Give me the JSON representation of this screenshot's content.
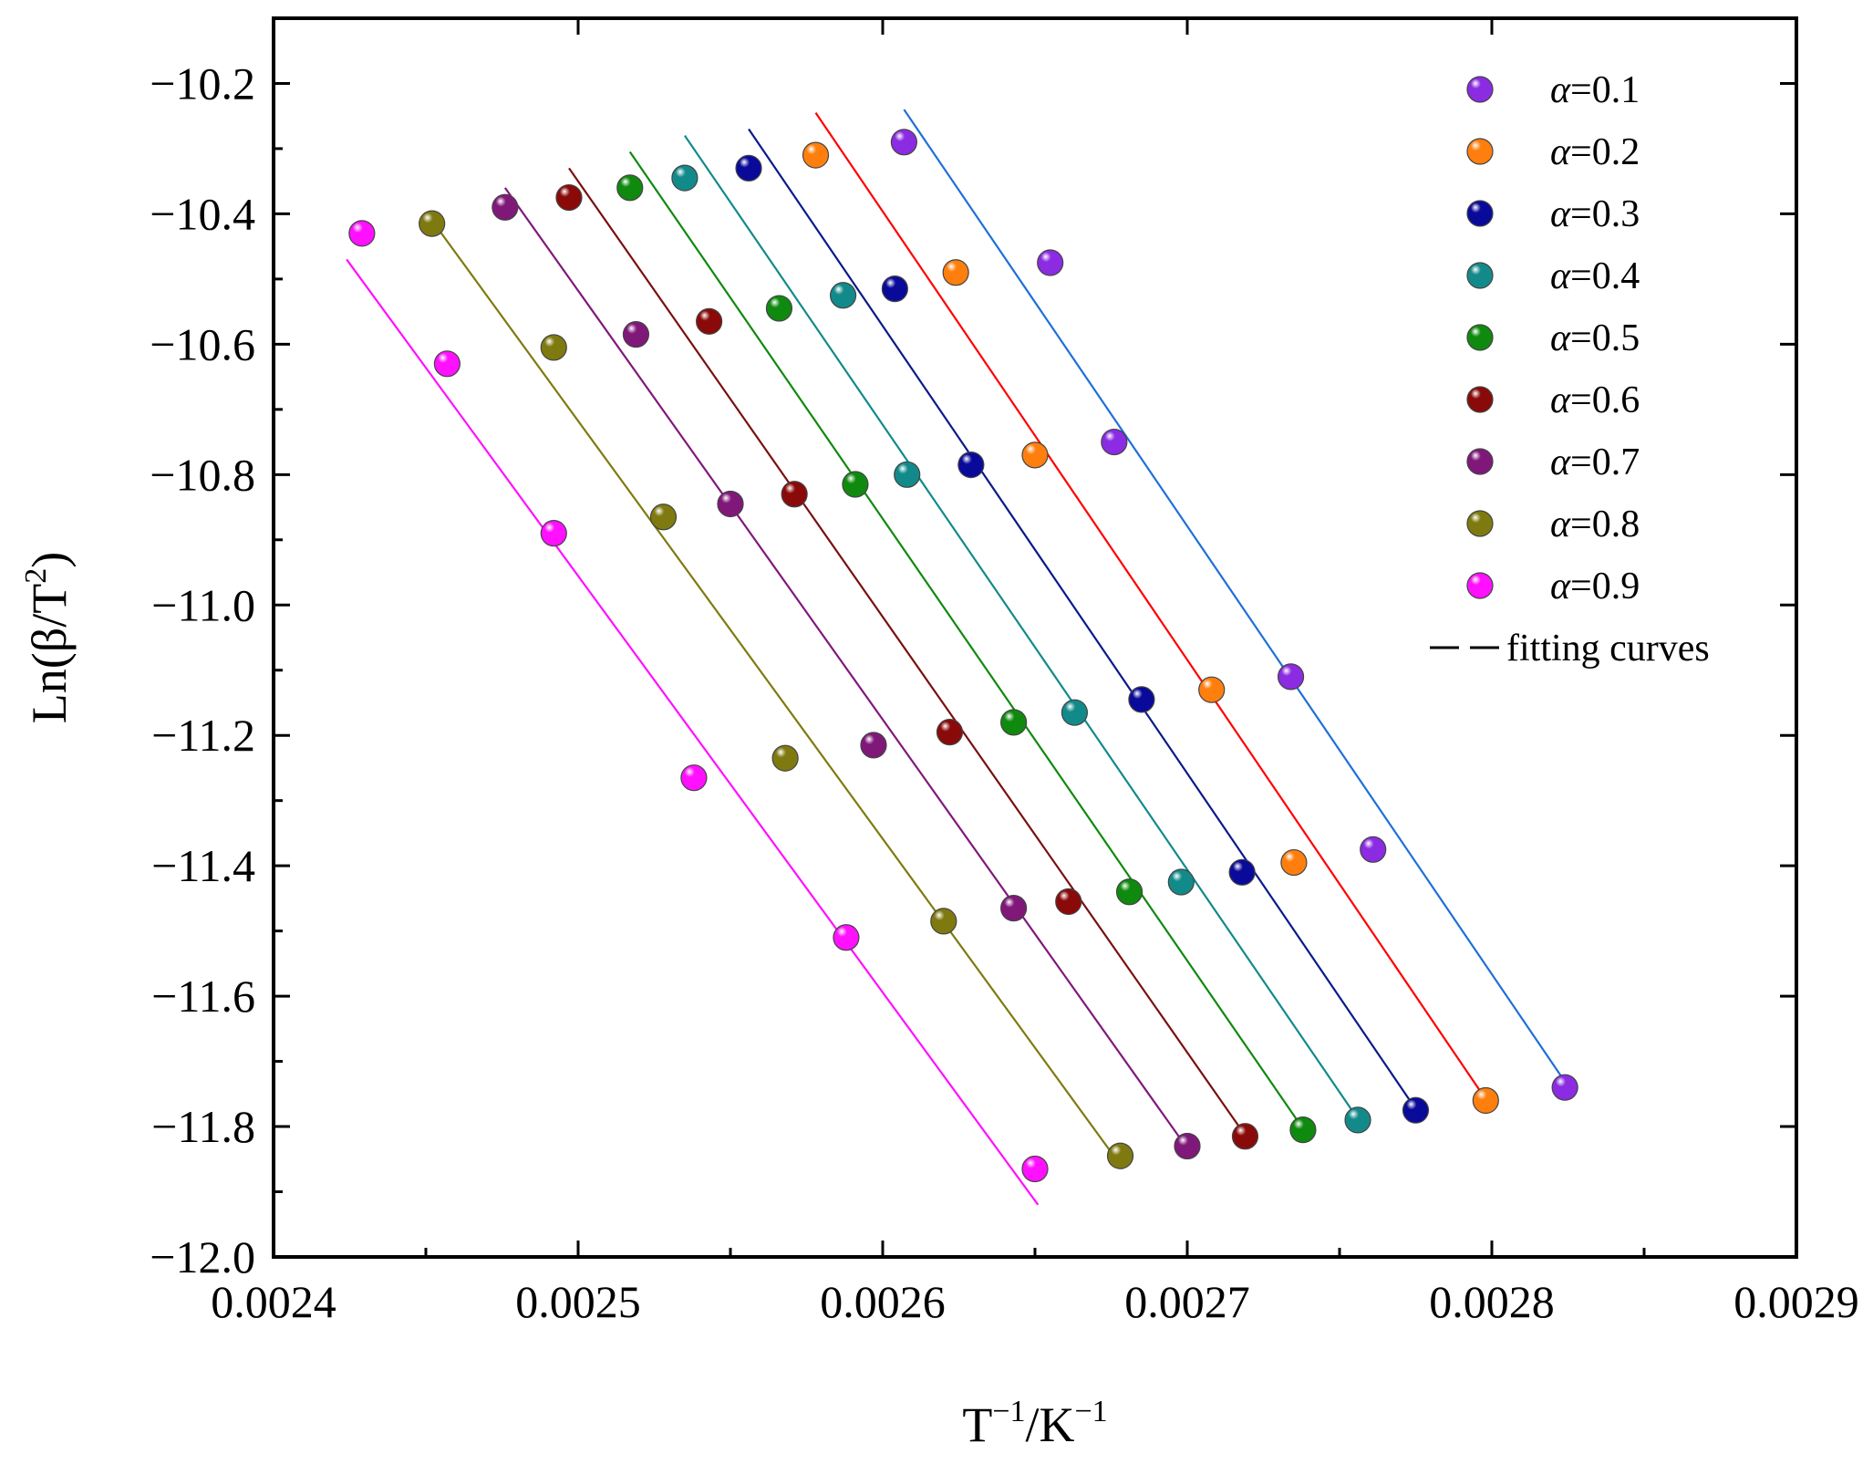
{
  "chart_data": {
    "type": "scatter",
    "title": "",
    "xlabel": {
      "base1": "T",
      "sup1": "−1",
      "mid": "/K",
      "sup2": "−1"
    },
    "ylabel": {
      "pre": "Ln(β/T",
      "sup": "2",
      "post": ")"
    },
    "xlim": [
      0.0024,
      0.0029
    ],
    "ylim": [
      -12.0,
      -10.1
    ],
    "x_ticks": [
      0.0024,
      0.0025,
      0.0026,
      0.0027,
      0.0028,
      0.0029
    ],
    "x_tick_labels": [
      "0.0024",
      "0.0025",
      "0.0026",
      "0.0027",
      "0.0028",
      "0.0029"
    ],
    "y_ticks": [
      -10.2,
      -10.4,
      -10.6,
      -10.8,
      -11.0,
      -11.2,
      -11.4,
      -11.6,
      -11.8,
      -12.0
    ],
    "y_tick_labels": [
      "−10.2",
      "−10.4",
      "−10.6",
      "−10.8",
      "−11.0",
      "−11.2",
      "−11.4",
      "−11.6",
      "−11.8",
      "−12.0"
    ],
    "grid": false,
    "legend_position": "top-right",
    "fit_label": "fitting curves",
    "series": [
      {
        "name": "α=0.1",
        "alpha": "α",
        "value": "=0.1",
        "color": "#8B2BE2",
        "line_color": "#1E6FD9",
        "x": [
          0.002607,
          0.002655,
          0.002676,
          0.002734,
          0.002761,
          0.002824
        ],
        "y": [
          -10.29,
          -10.475,
          -10.75,
          -11.11,
          -11.375,
          -11.74
        ],
        "fit": {
          "x": [
            0.002607,
            0.002826
          ],
          "y": [
            -10.24,
            -11.745
          ]
        }
      },
      {
        "name": "α=0.2",
        "alpha": "α",
        "value": "=0.2",
        "color": "#FF7F0E",
        "line_color": "#FF0000",
        "x": [
          0.002578,
          0.002624,
          0.00265,
          0.002708,
          0.002735,
          0.002798
        ],
        "y": [
          -10.31,
          -10.49,
          -10.77,
          -11.13,
          -11.395,
          -11.76
        ],
        "fit": {
          "x": [
            0.002578,
            0.002799
          ],
          "y": [
            -10.245,
            -11.765
          ]
        }
      },
      {
        "name": "α=0.3",
        "alpha": "α",
        "value": "=0.3",
        "color": "#0A0A9A",
        "line_color": "#0A1A8A",
        "x": [
          0.002556,
          0.002604,
          0.002629,
          0.002685,
          0.002718,
          0.002775
        ],
        "y": [
          -10.33,
          -10.515,
          -10.785,
          -11.145,
          -11.41,
          -11.775
        ],
        "fit": {
          "x": [
            0.002556,
            0.002776
          ],
          "y": [
            -10.27,
            -11.78
          ]
        }
      },
      {
        "name": "α=0.4",
        "alpha": "α",
        "value": "=0.4",
        "color": "#138A8A",
        "line_color": "#138A8A",
        "x": [
          0.002535,
          0.002587,
          0.002608,
          0.002663,
          0.002698,
          0.002756
        ],
        "y": [
          -10.345,
          -10.525,
          -10.8,
          -11.165,
          -11.425,
          -11.79
        ],
        "fit": {
          "x": [
            0.002535,
            0.002757
          ],
          "y": [
            -10.28,
            -11.795
          ]
        }
      },
      {
        "name": "α=0.5",
        "alpha": "α",
        "value": "=0.5",
        "color": "#0F8A0F",
        "line_color": "#0F8A0F",
        "x": [
          0.002517,
          0.002566,
          0.002591,
          0.002643,
          0.002681,
          0.002738
        ],
        "y": [
          -10.36,
          -10.545,
          -10.815,
          -11.18,
          -11.44,
          -11.805
        ],
        "fit": {
          "x": [
            0.002517,
            0.002739
          ],
          "y": [
            -10.305,
            -11.81
          ]
        }
      },
      {
        "name": "α=0.6",
        "alpha": "α",
        "value": "=0.6",
        "color": "#8A0A0A",
        "line_color": "#7A1010",
        "x": [
          0.002497,
          0.002543,
          0.002571,
          0.002622,
          0.002661,
          0.002719
        ],
        "y": [
          -10.375,
          -10.565,
          -10.83,
          -11.195,
          -11.455,
          -11.815
        ],
        "fit": {
          "x": [
            0.002497,
            0.00272
          ],
          "y": [
            -10.33,
            -11.82
          ]
        }
      },
      {
        "name": "α=0.7",
        "alpha": "α",
        "value": "=0.7",
        "color": "#80187A",
        "line_color": "#80187A",
        "x": [
          0.002476,
          0.002519,
          0.00255,
          0.002597,
          0.002643,
          0.0027
        ],
        "y": [
          -10.39,
          -10.585,
          -10.845,
          -11.215,
          -11.465,
          -11.83
        ],
        "fit": {
          "x": [
            0.002476,
            0.002701
          ],
          "y": [
            -10.36,
            -11.84
          ]
        }
      },
      {
        "name": "α=0.8",
        "alpha": "α",
        "value": "=0.8",
        "color": "#7F7A10",
        "line_color": "#7F7A10",
        "x": [
          0.002452,
          0.002492,
          0.002528,
          0.002568,
          0.00262,
          0.002678
        ],
        "y": [
          -10.415,
          -10.605,
          -10.865,
          -11.235,
          -11.485,
          -11.845
        ],
        "fit": {
          "x": [
            0.002452,
            0.002679
          ],
          "y": [
            -10.41,
            -11.865
          ]
        }
      },
      {
        "name": "α=0.9",
        "alpha": "α",
        "value": "=0.9",
        "color": "#FF10FF",
        "line_color": "#FF10FF",
        "x": [
          0.002429,
          0.002457,
          0.002492,
          0.002538,
          0.002588,
          0.00265
        ],
        "y": [
          -10.43,
          -10.63,
          -10.89,
          -11.265,
          -11.51,
          -11.865
        ],
        "fit": {
          "x": [
            0.002424,
            0.002651
          ],
          "y": [
            -10.47,
            -11.92
          ]
        }
      }
    ]
  }
}
